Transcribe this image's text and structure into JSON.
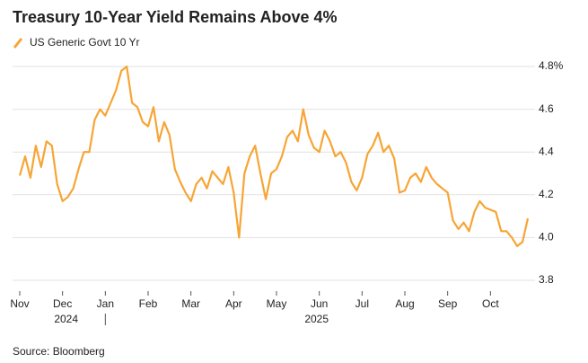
{
  "chart_data": {
    "type": "line",
    "title": "Treasury 10-Year Yield Remains Above 4%",
    "source": "Source: Bloomberg",
    "categories": [
      "Nov",
      null,
      null,
      null,
      null,
      null,
      null,
      null,
      "Dec",
      null,
      null,
      null,
      null,
      null,
      null,
      null,
      "Jan",
      null,
      null,
      null,
      null,
      null,
      null,
      null,
      "Feb",
      null,
      null,
      null,
      null,
      null,
      null,
      null,
      "Mar",
      null,
      null,
      null,
      null,
      null,
      null,
      null,
      "Apr",
      null,
      null,
      null,
      null,
      null,
      null,
      null,
      "May",
      null,
      null,
      null,
      null,
      null,
      null,
      null,
      "Jun",
      null,
      null,
      null,
      null,
      null,
      null,
      null,
      "Jul",
      null,
      null,
      null,
      null,
      null,
      null,
      null,
      "Aug",
      null,
      null,
      null,
      null,
      null,
      null,
      null,
      "Sep",
      null,
      null,
      null,
      null,
      null,
      null,
      null,
      "Oct",
      null,
      null,
      null,
      null,
      null,
      null,
      null
    ],
    "year_labels": [
      "2024",
      "2025"
    ],
    "series": [
      {
        "name": "US Generic Govt 10 Yr",
        "color": "#f7a535",
        "values": [
          4.29,
          4.38,
          4.28,
          4.43,
          4.33,
          4.45,
          4.43,
          4.25,
          4.17,
          4.19,
          4.23,
          4.32,
          4.4,
          4.4,
          4.55,
          4.6,
          4.57,
          4.63,
          4.69,
          4.78,
          4.8,
          4.63,
          4.61,
          4.54,
          4.52,
          4.61,
          4.45,
          4.54,
          4.48,
          4.32,
          4.26,
          4.21,
          4.17,
          4.25,
          4.28,
          4.23,
          4.31,
          4.28,
          4.25,
          4.33,
          4.21,
          4.0,
          4.3,
          4.38,
          4.43,
          4.3,
          4.18,
          4.3,
          4.32,
          4.38,
          4.47,
          4.5,
          4.45,
          4.6,
          4.48,
          4.42,
          4.4,
          4.5,
          4.45,
          4.38,
          4.4,
          4.35,
          4.26,
          4.22,
          4.28,
          4.39,
          4.43,
          4.49,
          4.4,
          4.43,
          4.37,
          4.21,
          4.22,
          4.28,
          4.3,
          4.26,
          4.33,
          4.28,
          4.25,
          4.23,
          4.21,
          4.08,
          4.04,
          4.07,
          4.03,
          4.12,
          4.17,
          4.14,
          4.13,
          4.12,
          4.03,
          4.03,
          4.0,
          3.96,
          3.98,
          4.09
        ]
      }
    ],
    "ylim": [
      3.8,
      4.8
    ],
    "yticks": [
      3.8,
      {
        "value": 4.0,
        "label": "4.0"
      },
      4.2,
      4.4,
      4.6,
      {
        "value": 4.8,
        "label": "4.8%"
      }
    ],
    "grid": true
  }
}
